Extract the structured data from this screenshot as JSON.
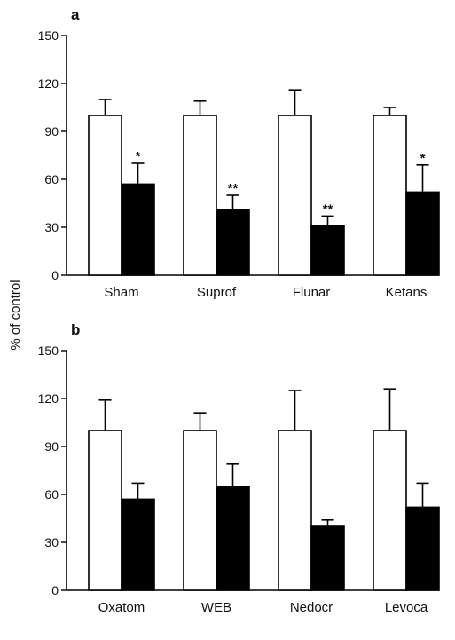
{
  "ylabel": "% of control",
  "chart_data": [
    {
      "type": "bar",
      "panel_label": "a",
      "categories": [
        "Sham",
        "Suprof",
        "Flunar",
        "Ketans"
      ],
      "ylim": [
        0,
        150
      ],
      "yticks": [
        0,
        30,
        60,
        90,
        120,
        150
      ],
      "series": [
        {
          "fill": "#ffffff",
          "values": [
            100,
            100,
            100,
            100
          ],
          "errors": [
            10,
            9,
            16,
            5
          ],
          "marks": [
            "",
            "",
            "",
            ""
          ]
        },
        {
          "fill": "#000000",
          "values": [
            57,
            41,
            31,
            52
          ],
          "errors": [
            13,
            9,
            6,
            17
          ],
          "marks": [
            "*",
            "**",
            "**",
            "*"
          ]
        }
      ]
    },
    {
      "type": "bar",
      "panel_label": "b",
      "categories": [
        "Oxatom",
        "WEB",
        "Nedocr",
        "Levoca"
      ],
      "ylim": [
        0,
        150
      ],
      "yticks": [
        0,
        30,
        60,
        90,
        120,
        150
      ],
      "series": [
        {
          "fill": "#ffffff",
          "values": [
            100,
            100,
            100,
            100
          ],
          "errors": [
            19,
            11,
            25,
            26
          ],
          "marks": [
            "",
            "",
            "",
            ""
          ]
        },
        {
          "fill": "#000000",
          "values": [
            57,
            65,
            40,
            52
          ],
          "errors": [
            10,
            14,
            4,
            15
          ],
          "marks": [
            "",
            "",
            "",
            ""
          ]
        }
      ]
    }
  ]
}
